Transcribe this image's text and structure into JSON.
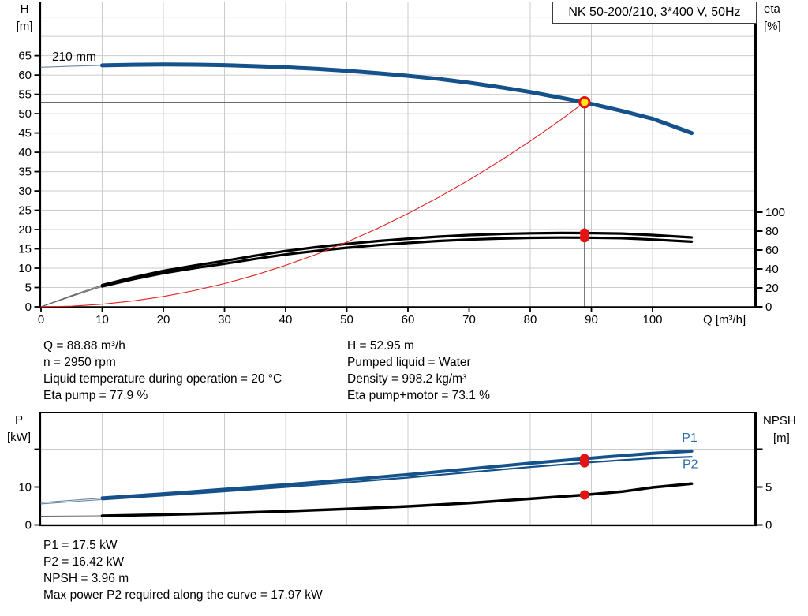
{
  "title_box": {
    "label": "NK 50-200/210, 3*400 V, 50Hz"
  },
  "operating_data": {
    "left": [
      "Q = 88.88 m³/h",
      "n = 2950 rpm",
      "Liquid temperature during operation = 20 °C",
      "Eta pump = 77.9 %"
    ],
    "right": [
      "H = 52.95 m",
      "Pumped liquid = Water",
      "Density = 998.2 kg/m³",
      "Eta pump+motor = 73.1 %"
    ]
  },
  "power_data": [
    "P1 = 17.5 kW",
    "P2 = 16.42 kW",
    "NPSH = 3.96 m",
    "Max power P2 required along the curve = 17.97 kW"
  ],
  "duty_point": {
    "q": 88.88,
    "h": 52.95,
    "eta_pump": 77.9,
    "eta_pump_motor": 73.1,
    "p1": 17.5,
    "p2": 16.42,
    "npsh": 3.96
  },
  "colors": {
    "curve_blue": "#15518a",
    "thin_blue": "#6c87a1",
    "label_blue": "#2a6cae",
    "curve_black": "#000000",
    "thin_black": "#666666",
    "red": "#e21414",
    "marker_yellow": "#ffe81a",
    "grid": "#cbcbcb",
    "crosshair": "#6a6a6a",
    "frame": "#000000"
  },
  "chart_data": [
    {
      "type": "line",
      "title": "NK 50-200/210, 3*400 V, 50Hz",
      "xlabel": "Q [m³/h]",
      "ylabel_left": [
        "H",
        "[m]"
      ],
      "ylabel_right": [
        "eta",
        "[%]"
      ],
      "xlim": [
        0,
        117
      ],
      "ylim_left": [
        0,
        79
      ],
      "ylim_right": [
        0,
        100
      ],
      "grid": true,
      "x_ticks": [
        0,
        10,
        20,
        30,
        40,
        50,
        60,
        70,
        80,
        90,
        100
      ],
      "left_ticks": [
        0,
        5,
        10,
        15,
        20,
        25,
        30,
        35,
        40,
        45,
        50,
        55,
        60,
        65
      ],
      "left_grid": [
        5,
        10,
        15,
        20,
        25,
        30,
        35,
        40,
        45,
        50,
        55,
        60,
        65,
        70,
        75
      ],
      "right_ticks": [
        0,
        20,
        40,
        60,
        80,
        100
      ],
      "annotations": [
        {
          "text": "210 mm",
          "q": 1.8,
          "val": 63.7,
          "color": "#000000",
          "size": 15.5
        }
      ],
      "series": [
        {
          "name": "head-210mm",
          "axis": "left",
          "color": "#15518a",
          "thin_color": "#6c87a1",
          "width": 5,
          "thin_from_q": 10,
          "points": [
            [
              0,
              62
            ],
            [
              5,
              62.3
            ],
            [
              10,
              62.5
            ],
            [
              15,
              62.65
            ],
            [
              20,
              62.72
            ],
            [
              25,
              62.68
            ],
            [
              30,
              62.55
            ],
            [
              35,
              62.3
            ],
            [
              40,
              62.0
            ],
            [
              45,
              61.6
            ],
            [
              50,
              61.1
            ],
            [
              55,
              60.5
            ],
            [
              60,
              59.8
            ],
            [
              65,
              59.0
            ],
            [
              70,
              58.0
            ],
            [
              75,
              56.85
            ],
            [
              80,
              55.6
            ],
            [
              85,
              54.1
            ],
            [
              88.88,
              52.95
            ],
            [
              95,
              50.7
            ],
            [
              100,
              48.7
            ],
            [
              106.4,
              45.0
            ]
          ]
        },
        {
          "name": "eta-pump",
          "axis": "right",
          "color": "#000000",
          "thin_color": "#666666",
          "width": 3.2,
          "thin_from_q": 10,
          "points": [
            [
              0,
              0
            ],
            [
              5,
              12
            ],
            [
              10,
              23
            ],
            [
              15,
              31
            ],
            [
              20,
              38
            ],
            [
              25,
              43.5
            ],
            [
              30,
              48.5
            ],
            [
              35,
              54
            ],
            [
              40,
              59
            ],
            [
              45,
              63
            ],
            [
              50,
              66.5
            ],
            [
              55,
              69.5
            ],
            [
              60,
              72
            ],
            [
              65,
              74.2
            ],
            [
              70,
              75.8
            ],
            [
              75,
              77
            ],
            [
              80,
              77.7
            ],
            [
              85,
              78
            ],
            [
              88.88,
              77.9
            ],
            [
              95,
              77.4
            ],
            [
              100,
              75.8
            ],
            [
              106.4,
              73.3
            ]
          ]
        },
        {
          "name": "eta-pump-motor",
          "axis": "right",
          "color": "#000000",
          "thin_color": "#666666",
          "width": 3.2,
          "thin_from_q": 10,
          "points": [
            [
              0,
              0
            ],
            [
              5,
              11.2
            ],
            [
              10,
              21.6
            ],
            [
              15,
              29.1
            ],
            [
              20,
              35.6
            ],
            [
              25,
              40.8
            ],
            [
              30,
              45.5
            ],
            [
              35,
              50.6
            ],
            [
              40,
              55.3
            ],
            [
              45,
              59.1
            ],
            [
              50,
              62.4
            ],
            [
              55,
              65.2
            ],
            [
              60,
              67.5
            ],
            [
              65,
              69.6
            ],
            [
              70,
              71.1
            ],
            [
              75,
              72.2
            ],
            [
              80,
              72.9
            ],
            [
              85,
              73.2
            ],
            [
              88.88,
              73.1
            ],
            [
              95,
              72.6
            ],
            [
              100,
              71.1
            ],
            [
              106.4,
              68.8
            ]
          ]
        },
        {
          "name": "system-curve",
          "axis": "left",
          "color": "#e22020",
          "width": 1.1,
          "points": [
            [
              0,
              0
            ],
            [
              5,
              0.17
            ],
            [
              10,
              0.67
            ],
            [
              15,
              1.51
            ],
            [
              20,
              2.68
            ],
            [
              25,
              4.19
            ],
            [
              30,
              6.03
            ],
            [
              35,
              8.21
            ],
            [
              40,
              10.73
            ],
            [
              45,
              13.58
            ],
            [
              50,
              16.76
            ],
            [
              55,
              20.28
            ],
            [
              60,
              24.14
            ],
            [
              65,
              28.33
            ],
            [
              70,
              32.85
            ],
            [
              75,
              37.71
            ],
            [
              80,
              42.9
            ],
            [
              85,
              48.43
            ],
            [
              88.88,
              52.95
            ]
          ]
        }
      ]
    },
    {
      "type": "line",
      "xlabel": "",
      "ylabel_left": [
        "P",
        "[kW]"
      ],
      "ylabel_right": [
        "NPSH",
        "[m]"
      ],
      "xlim": [
        0,
        117
      ],
      "ylim_left": [
        0,
        30
      ],
      "ylim_right": [
        0,
        15
      ],
      "grid": true,
      "x_grid": [
        10,
        20,
        30,
        40,
        50,
        60,
        70,
        80,
        90,
        100
      ],
      "left_ticks": [
        0,
        10,
        20
      ],
      "left_tick_labels": [
        "0",
        "10",
        ""
      ],
      "left_grid": [
        10,
        20
      ],
      "right_ticks": [
        0,
        5,
        10
      ],
      "right_tick_labels": [
        "0",
        "5",
        ""
      ],
      "annotations": [
        {
          "text": "P1",
          "q": 104.8,
          "val": 22.0,
          "color": "#2a6cae",
          "size": 16
        },
        {
          "text": "P2",
          "q": 104.9,
          "val": 15.05,
          "color": "#2a6cae",
          "size": 16
        }
      ],
      "series": [
        {
          "name": "P1",
          "axis": "left",
          "color": "#15518a",
          "thin_color": "#6c87a1",
          "width": 4,
          "thin_from_q": 10,
          "points": [
            [
              0,
              5.9
            ],
            [
              10,
              7.1
            ],
            [
              20,
              8.2
            ],
            [
              30,
              9.4
            ],
            [
              40,
              10.6
            ],
            [
              50,
              11.9
            ],
            [
              60,
              13.3
            ],
            [
              70,
              14.8
            ],
            [
              80,
              16.3
            ],
            [
              88.88,
              17.5
            ],
            [
              95,
              18.3
            ],
            [
              100,
              18.9
            ],
            [
              106.4,
              19.5
            ]
          ]
        },
        {
          "name": "P2",
          "axis": "left",
          "color": "#15518a",
          "thin_color": "#6c87a1",
          "width": 2.2,
          "thin_from_q": 10,
          "points": [
            [
              0,
              5.55
            ],
            [
              10,
              6.7
            ],
            [
              20,
              7.75
            ],
            [
              30,
              8.85
            ],
            [
              40,
              10.0
            ],
            [
              50,
              11.2
            ],
            [
              60,
              12.5
            ],
            [
              70,
              13.9
            ],
            [
              80,
              15.3
            ],
            [
              88.88,
              16.42
            ],
            [
              95,
              17.1
            ],
            [
              100,
              17.6
            ],
            [
              106.4,
              17.97
            ]
          ]
        },
        {
          "name": "NPSH",
          "axis": "right",
          "color": "#000000",
          "thin_color": "#666666",
          "width": 3.5,
          "thin_from_q": 10,
          "points": [
            [
              0,
              1.15
            ],
            [
              10,
              1.2
            ],
            [
              20,
              1.35
            ],
            [
              30,
              1.55
            ],
            [
              40,
              1.8
            ],
            [
              50,
              2.1
            ],
            [
              60,
              2.45
            ],
            [
              70,
              2.9
            ],
            [
              80,
              3.45
            ],
            [
              88.88,
              3.96
            ],
            [
              95,
              4.4
            ],
            [
              100,
              4.95
            ],
            [
              106.4,
              5.45
            ]
          ]
        }
      ]
    }
  ]
}
